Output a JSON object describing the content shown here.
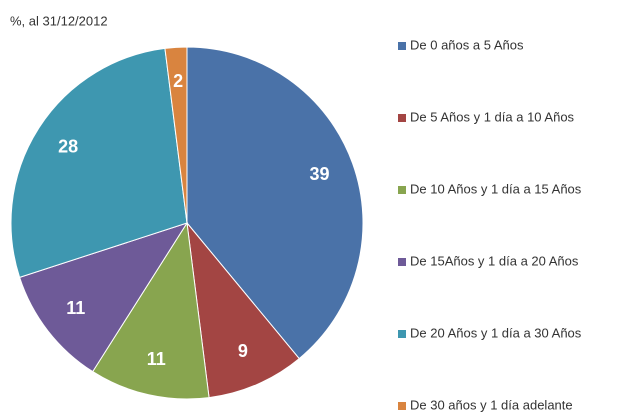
{
  "chart_data": {
    "type": "pie",
    "title": "%, al 31/12/2012",
    "categories": [
      "De 0 años a 5 Años",
      "De 5 Años y 1 día a 10 Años",
      "De 10 Años y 1 día a 15 Años",
      "De 15Años y 1 día a 20 Años",
      "De 20 Años y 1 día a 30 Años",
      "De 30 años y 1 día adelante"
    ],
    "values": [
      39,
      9,
      11,
      11,
      28,
      2
    ],
    "colors": [
      "#4a72a8",
      "#a34543",
      "#88a54f",
      "#6e5a98",
      "#3e97b0",
      "#d9843f"
    ],
    "legend": "right"
  }
}
